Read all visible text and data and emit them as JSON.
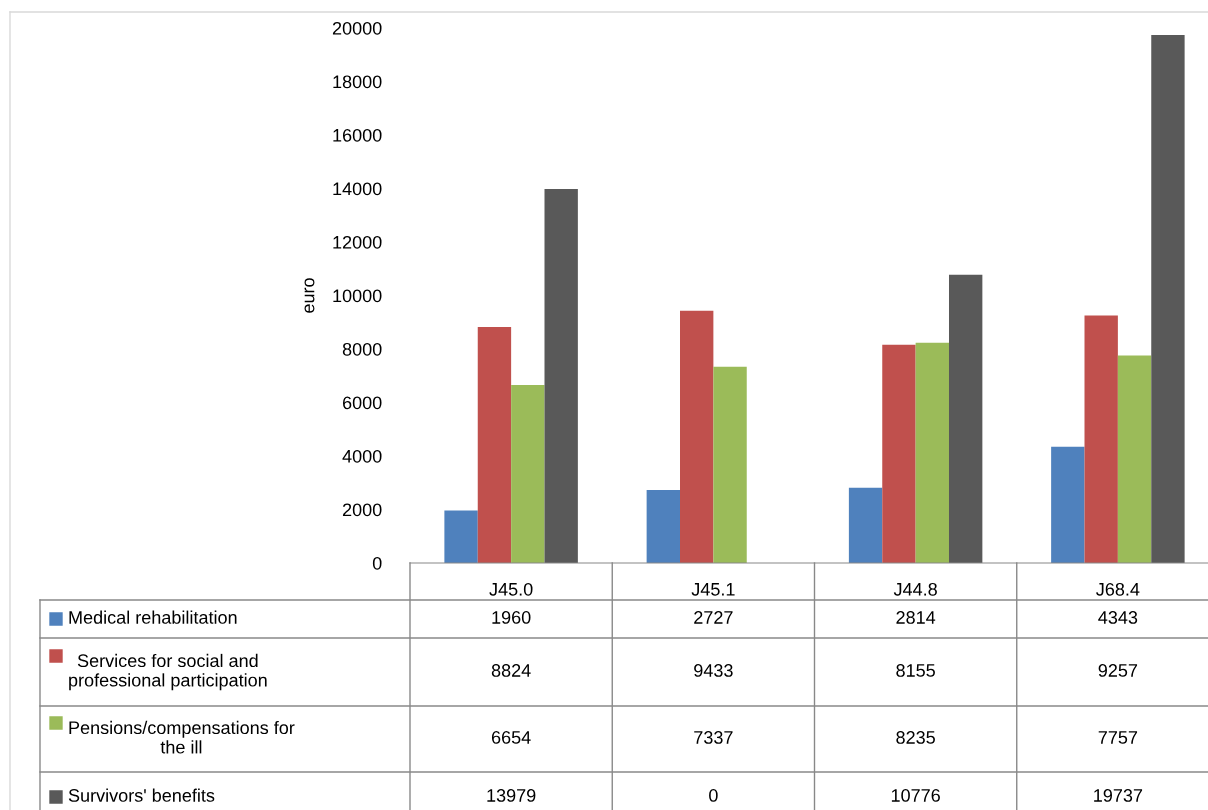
{
  "chart_data": {
    "type": "bar",
    "ylabel": "euro",
    "categories": [
      "J45.0",
      "J45.1",
      "J44.8",
      "J68.4"
    ],
    "series": [
      {
        "name": "Medical rehabilitation",
        "color": "#4f81bd",
        "values": [
          1960,
          2727,
          2814,
          4343
        ]
      },
      {
        "name": "Services for social and\nprofessional participation",
        "color": "#c0504d",
        "values": [
          8824,
          9433,
          8155,
          9257
        ]
      },
      {
        "name": "Pensions/compensations for\nthe ill",
        "color": "#9bbb59",
        "values": [
          6654,
          7337,
          8235,
          7757
        ]
      },
      {
        "name": "Survivors' benefits",
        "color": "#595959",
        "values": [
          13979,
          0,
          10776,
          19737
        ]
      }
    ],
    "ylim": [
      0,
      20000
    ],
    "yticks": [
      0,
      2000,
      4000,
      6000,
      8000,
      10000,
      12000,
      14000,
      16000,
      18000,
      20000
    ],
    "grid": false,
    "legend": "bottom",
    "data_labels": true
  }
}
